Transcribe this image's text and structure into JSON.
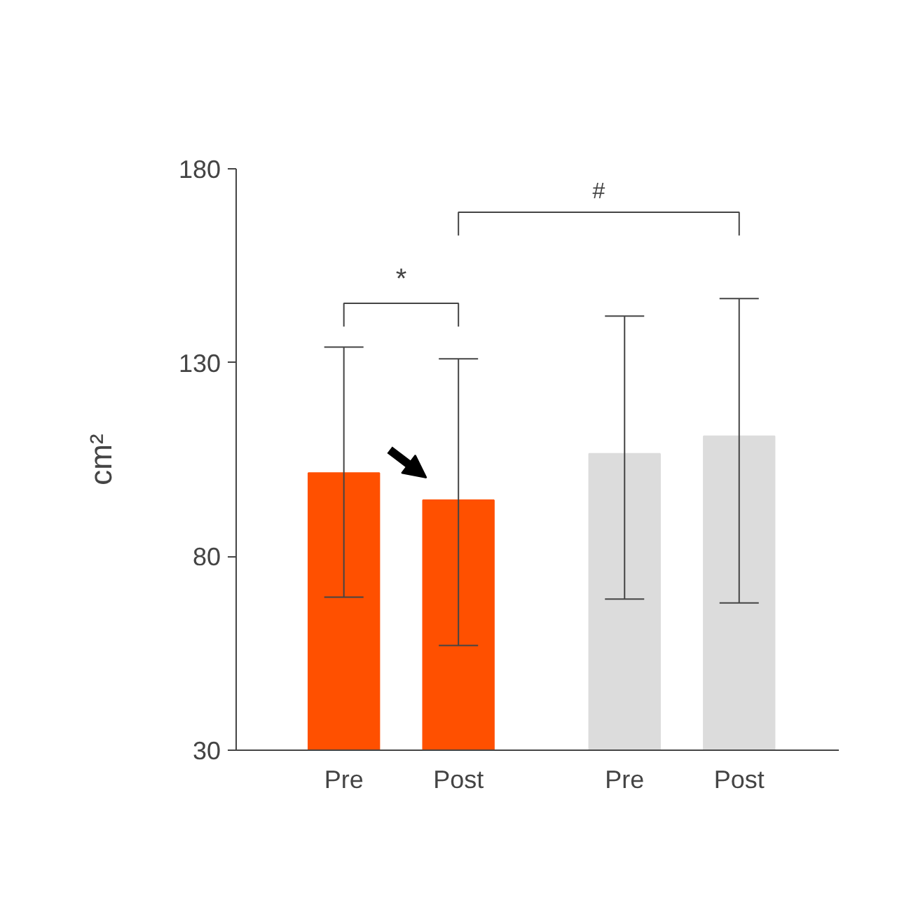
{
  "chart_data": {
    "type": "bar",
    "ylabel": "cm²",
    "categories": [
      "Pre",
      "Post",
      "Pre",
      "Post"
    ],
    "values": [
      101.5,
      94.5,
      106.5,
      111
    ],
    "colors": [
      "#ff5000",
      "#ff5000",
      "#dcdcdc",
      "#dcdcdc"
    ],
    "errors": [
      [
        69.5,
        134
      ],
      [
        57,
        131
      ],
      [
        69,
        142
      ],
      [
        68,
        146.5
      ]
    ],
    "ylim": [
      30,
      180
    ],
    "yticks": [
      30,
      80,
      130,
      180
    ],
    "grid": false,
    "annotations": [
      "*",
      "#"
    ]
  }
}
